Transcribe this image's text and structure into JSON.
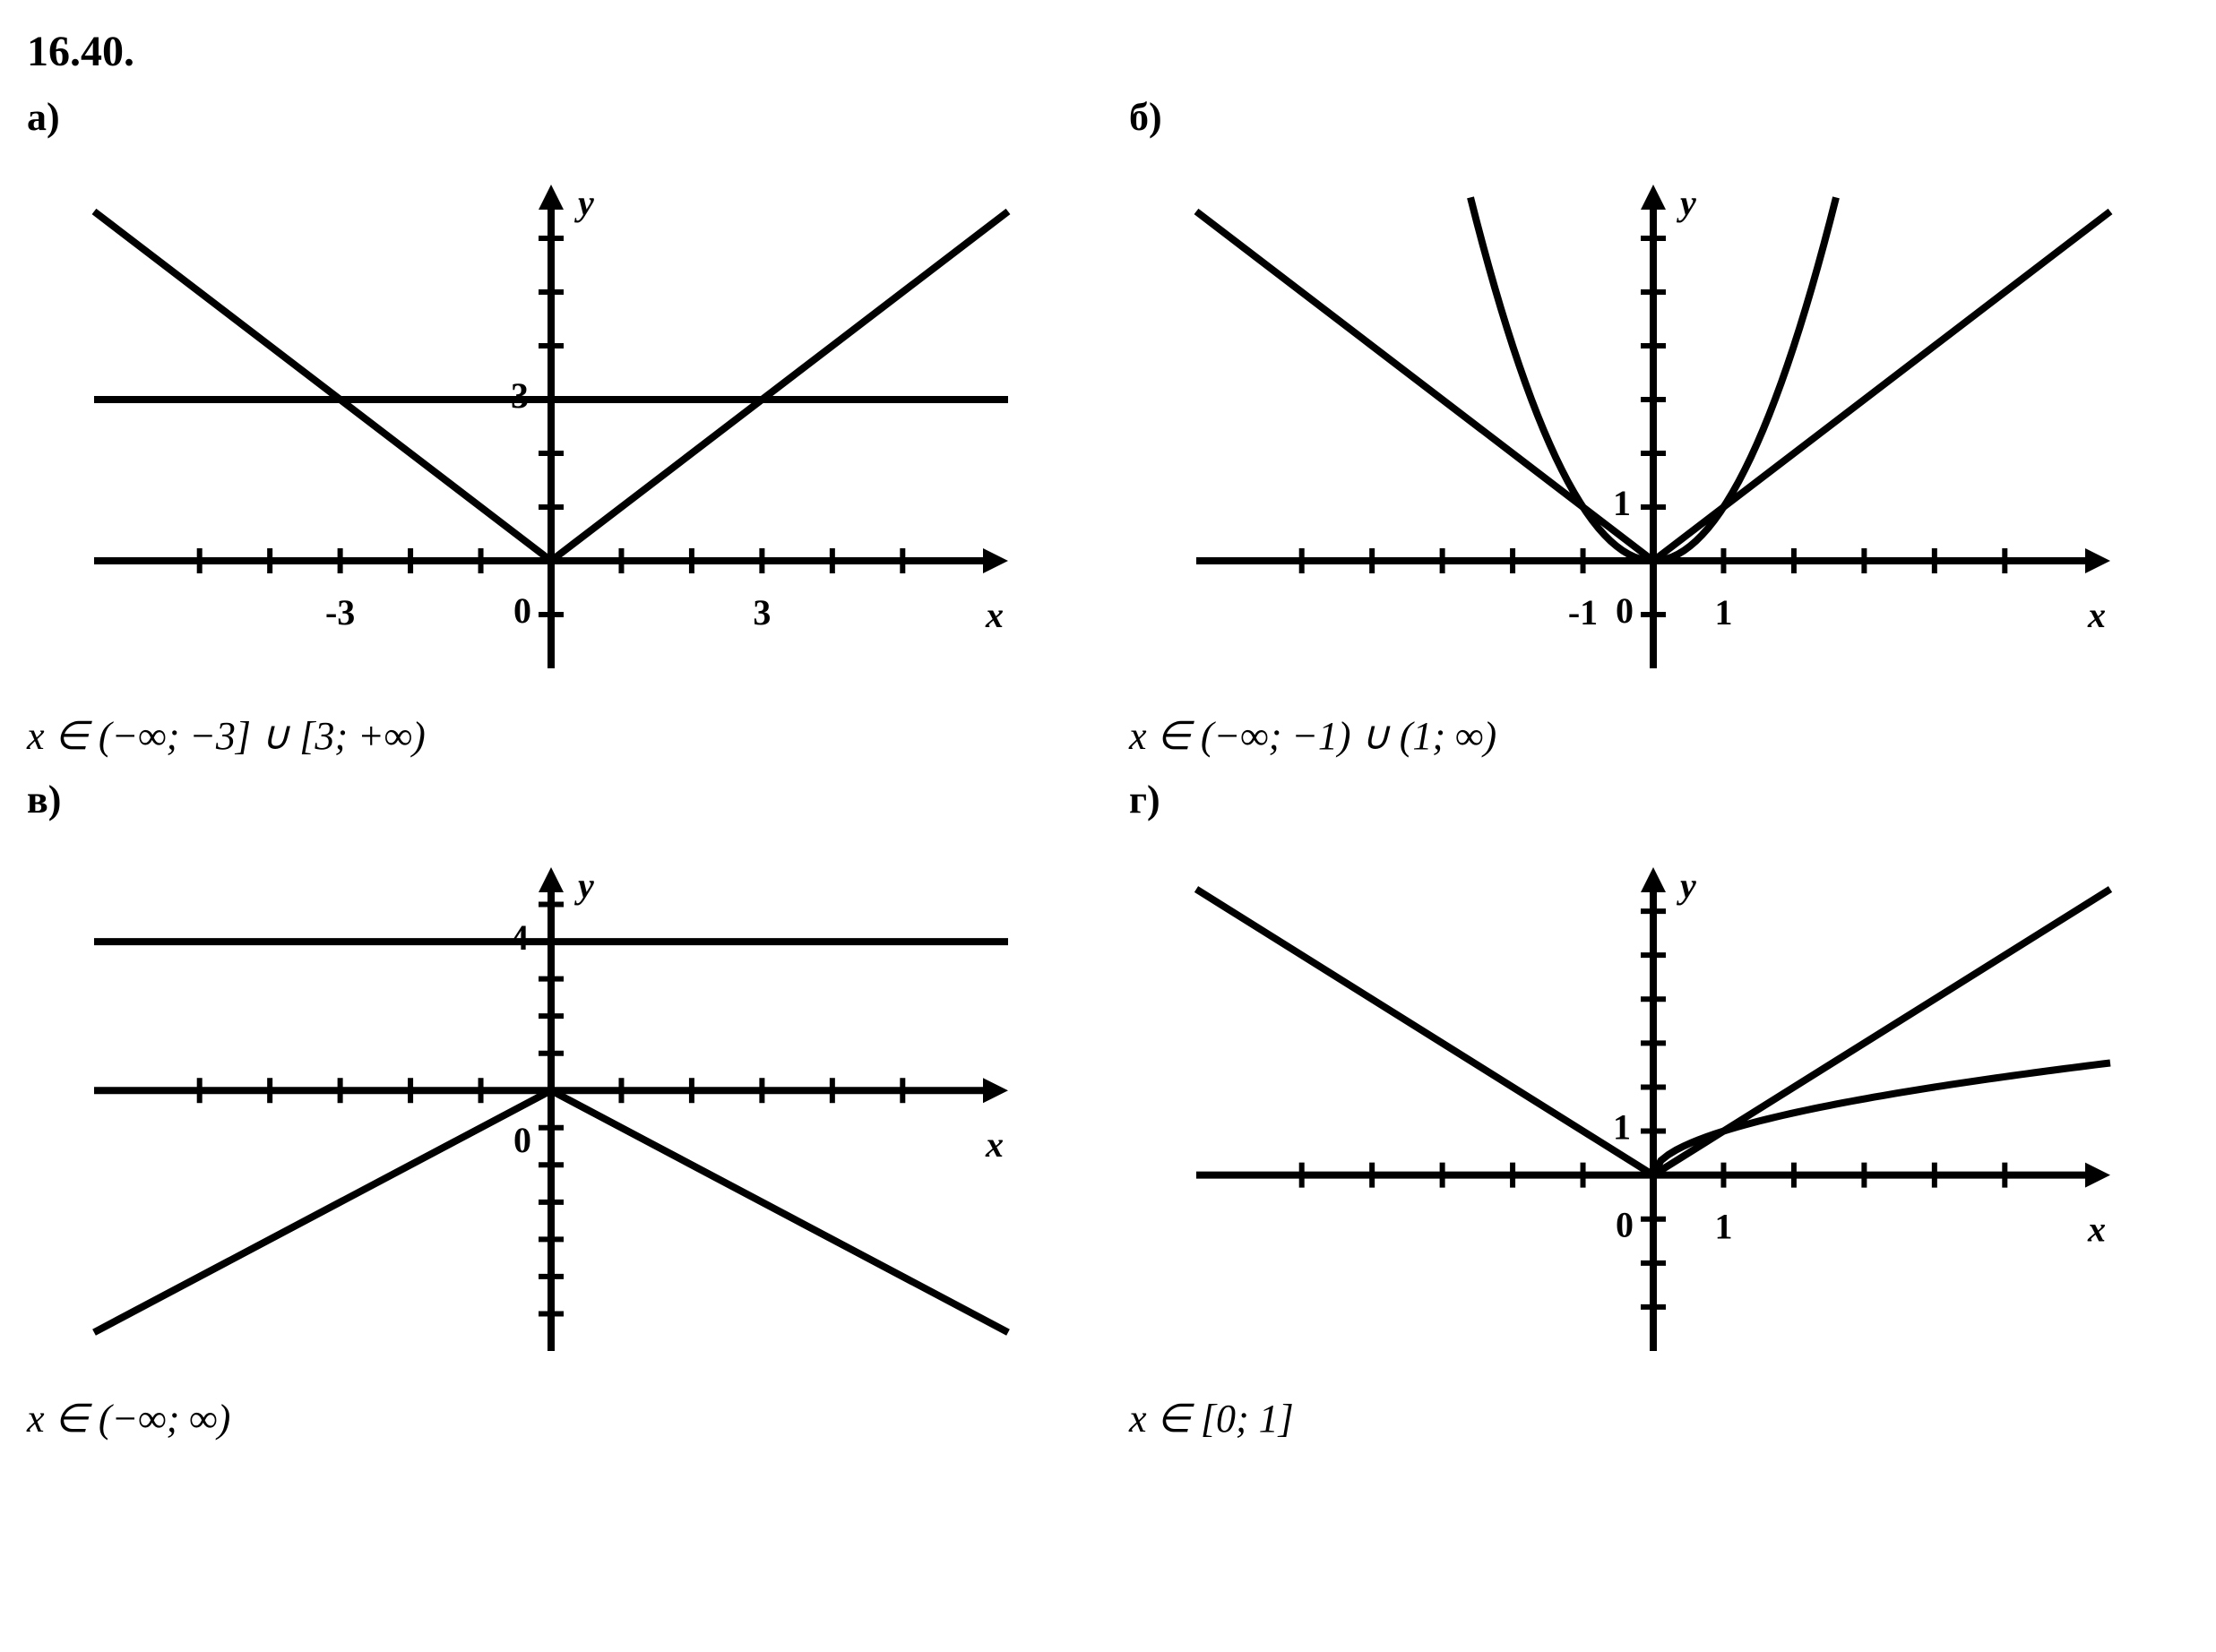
{
  "title": "16.40.",
  "panels": {
    "a": {
      "label": "а)",
      "answer": "x ∈ (−∞; −3] ∪ [3; +∞)",
      "chart": {
        "type": "line",
        "background_color": "#ffffff",
        "axis_color": "#000000",
        "stroke_width": 8,
        "tick_stroke_width": 6,
        "xlim": [
          -6.5,
          6.5
        ],
        "ylim": [
          -2,
          7
        ],
        "xticks": [
          -5,
          -4,
          -3,
          -2,
          -1,
          1,
          2,
          3,
          4,
          5
        ],
        "yticks": [
          -1,
          1,
          2,
          3,
          4,
          5,
          6
        ],
        "xlabel": "x",
        "ylabel": "y",
        "origin_label": "0",
        "xtick_labels": [
          {
            "pos": -3,
            "text": "-3"
          },
          {
            "pos": 3,
            "text": "3"
          }
        ],
        "ytick_labels": [
          {
            "pos": 3,
            "text": "3"
          }
        ],
        "curves": [
          {
            "type": "abs",
            "points": [
              [
                -6.5,
                6.5
              ],
              [
                0,
                0
              ],
              [
                6.5,
                6.5
              ]
            ],
            "color": "#000000",
            "width": 8
          },
          {
            "type": "hline",
            "y": 3,
            "x0": -6.5,
            "x1": 6.5,
            "color": "#000000",
            "width": 8
          }
        ],
        "label_fontsize": 40,
        "axis_label_fontsize": 40
      }
    },
    "b": {
      "label": "б)",
      "answer": "x ∈ (−∞; −1) ∪ (1; ∞)",
      "chart": {
        "type": "line",
        "background_color": "#ffffff",
        "axis_color": "#000000",
        "stroke_width": 8,
        "tick_stroke_width": 6,
        "xlim": [
          -6.5,
          6.5
        ],
        "ylim": [
          -2,
          7
        ],
        "xticks": [
          -5,
          -4,
          -3,
          -2,
          -1,
          1,
          2,
          3,
          4,
          5
        ],
        "yticks": [
          -1,
          1,
          2,
          3,
          4,
          5,
          6
        ],
        "xlabel": "x",
        "ylabel": "y",
        "origin_label": "0",
        "xtick_labels": [
          {
            "pos": -1,
            "text": "-1"
          },
          {
            "pos": 1,
            "text": "1"
          }
        ],
        "ytick_labels": [
          {
            "pos": 1,
            "text": "1"
          }
        ],
        "curves": [
          {
            "type": "abs",
            "points": [
              [
                -6.5,
                6.5
              ],
              [
                0,
                0
              ],
              [
                6.5,
                6.5
              ]
            ],
            "color": "#000000",
            "width": 8
          },
          {
            "type": "square",
            "scale": 1,
            "xrange": [
              -2.6,
              2.6
            ],
            "color": "#000000",
            "width": 8,
            "n": 60
          }
        ],
        "label_fontsize": 40,
        "axis_label_fontsize": 40
      }
    },
    "c": {
      "label": "в)",
      "answer": "x ∈ (−∞; ∞)",
      "chart": {
        "type": "line",
        "background_color": "#ffffff",
        "axis_color": "#000000",
        "stroke_width": 8,
        "tick_stroke_width": 6,
        "xlim": [
          -6.5,
          6.5
        ],
        "ylim": [
          -7,
          6
        ],
        "xticks": [
          -5,
          -4,
          -3,
          -2,
          -1,
          1,
          2,
          3,
          4,
          5
        ],
        "yticks": [
          -6,
          -5,
          -4,
          -3,
          -2,
          -1,
          1,
          2,
          3,
          4,
          5
        ],
        "xlabel": "x",
        "ylabel": "y",
        "origin_label": "0",
        "xtick_labels": [],
        "ytick_labels": [
          {
            "pos": 4,
            "text": "4"
          }
        ],
        "curves": [
          {
            "type": "neg_abs",
            "points": [
              [
                -6.5,
                -6.5
              ],
              [
                0,
                0
              ],
              [
                6.5,
                -6.5
              ]
            ],
            "color": "#000000",
            "width": 8
          },
          {
            "type": "hline",
            "y": 4,
            "x0": -6.5,
            "x1": 6.5,
            "color": "#000000",
            "width": 8
          }
        ],
        "label_fontsize": 40,
        "axis_label_fontsize": 40
      }
    },
    "d": {
      "label": "г)",
      "answer": "x ∈ [0; 1]",
      "chart": {
        "type": "line",
        "background_color": "#ffffff",
        "axis_color": "#000000",
        "stroke_width": 8,
        "tick_stroke_width": 6,
        "xlim": [
          -6.5,
          6.5
        ],
        "ylim": [
          -4,
          7
        ],
        "xticks": [
          -5,
          -4,
          -3,
          -2,
          -1,
          1,
          2,
          3,
          4,
          5
        ],
        "yticks": [
          -3,
          -2,
          -1,
          1,
          2,
          3,
          4,
          5,
          6
        ],
        "xlabel": "x",
        "ylabel": "y",
        "origin_label": "0",
        "xtick_labels": [
          {
            "pos": 1,
            "text": "1"
          }
        ],
        "ytick_labels": [
          {
            "pos": 1,
            "text": "1"
          }
        ],
        "curves": [
          {
            "type": "abs",
            "points": [
              [
                -6.5,
                6.5
              ],
              [
                0,
                0
              ],
              [
                6.5,
                6.5
              ]
            ],
            "color": "#000000",
            "width": 8
          },
          {
            "type": "sqrt",
            "xrange": [
              0,
              6.5
            ],
            "color": "#000000",
            "width": 8,
            "n": 60
          }
        ],
        "label_fontsize": 40,
        "axis_label_fontsize": 40
      }
    }
  }
}
